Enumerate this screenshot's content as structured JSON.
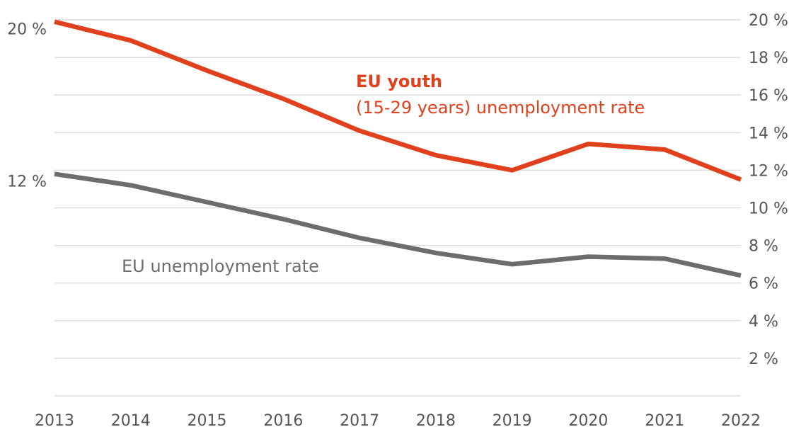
{
  "chart_data": {
    "type": "line",
    "x": [
      2013,
      2014,
      2015,
      2016,
      2017,
      2018,
      2019,
      2020,
      2021,
      2022
    ],
    "x_tick_labels": [
      "2013",
      "2014",
      "2015",
      "2016",
      "2017",
      "2018",
      "2019",
      "2020",
      "2021",
      "2022"
    ],
    "ylim": [
      0,
      20
    ],
    "y_ticks_right": [
      "2 %",
      "4 %",
      "6 %",
      "8 %",
      "10 %",
      "12 %",
      "14 %",
      "16 %",
      "18 %",
      "20 %"
    ],
    "y_ticks_right_values": [
      2,
      4,
      6,
      8,
      10,
      12,
      14,
      16,
      18,
      20
    ],
    "y_ticks_left": [
      "12 %",
      "20 %"
    ],
    "y_ticks_left_values": [
      11.8,
      19.9
    ],
    "grid": true,
    "series": [
      {
        "name_line1": "EU youth",
        "name_line2": "(15-29 years) unemployment rate",
        "color": "#e0401c",
        "values": [
          19.9,
          18.9,
          17.3,
          15.8,
          14.1,
          12.8,
          12.0,
          13.4,
          13.1,
          11.5
        ]
      },
      {
        "name": "EU unemployment rate",
        "color": "#6d6d6d",
        "values": [
          11.8,
          11.2,
          10.3,
          9.4,
          8.4,
          7.6,
          7.0,
          7.4,
          7.3,
          6.4
        ]
      }
    ]
  }
}
